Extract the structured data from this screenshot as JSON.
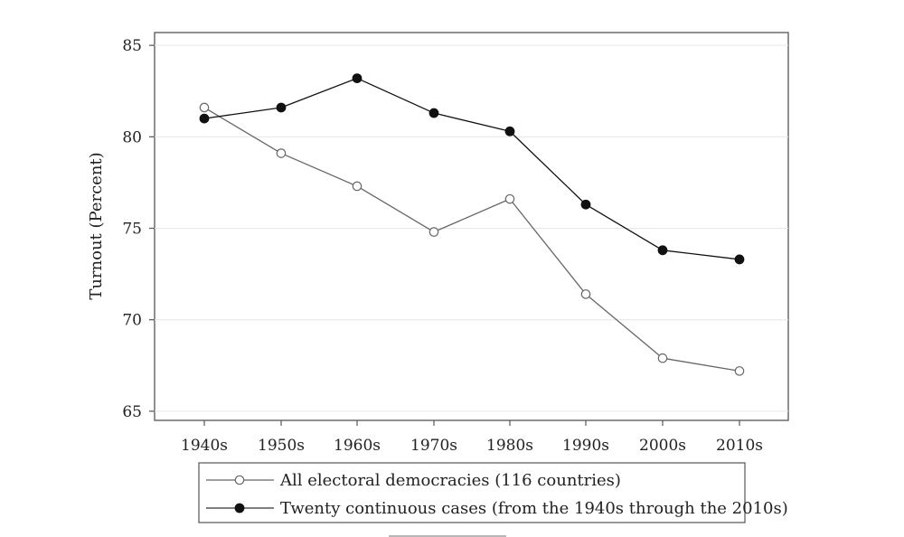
{
  "chart_data": {
    "type": "line",
    "title": "",
    "xlabel": "",
    "ylabel": "Turnout (Percent)",
    "categories": [
      "1940s",
      "1950s",
      "1960s",
      "1970s",
      "1980s",
      "1990s",
      "2000s",
      "2010s"
    ],
    "ylim": [
      64.5,
      85.7
    ],
    "yticks": [
      65,
      70,
      75,
      80,
      85
    ],
    "grid": true,
    "legend_position": "bottom",
    "series": [
      {
        "name": "All electoral democracies (116 countries)",
        "values": [
          81.6,
          79.1,
          77.3,
          74.8,
          76.6,
          71.4,
          67.9,
          67.2
        ],
        "marker": "hollow-circle",
        "color": "#666666"
      },
      {
        "name": "Twenty continuous cases (from the 1940s through the 2010s)",
        "values": [
          81.0,
          81.6,
          83.2,
          81.3,
          80.3,
          76.3,
          73.8,
          73.3
        ],
        "marker": "filled-circle",
        "color": "#111111"
      }
    ]
  }
}
